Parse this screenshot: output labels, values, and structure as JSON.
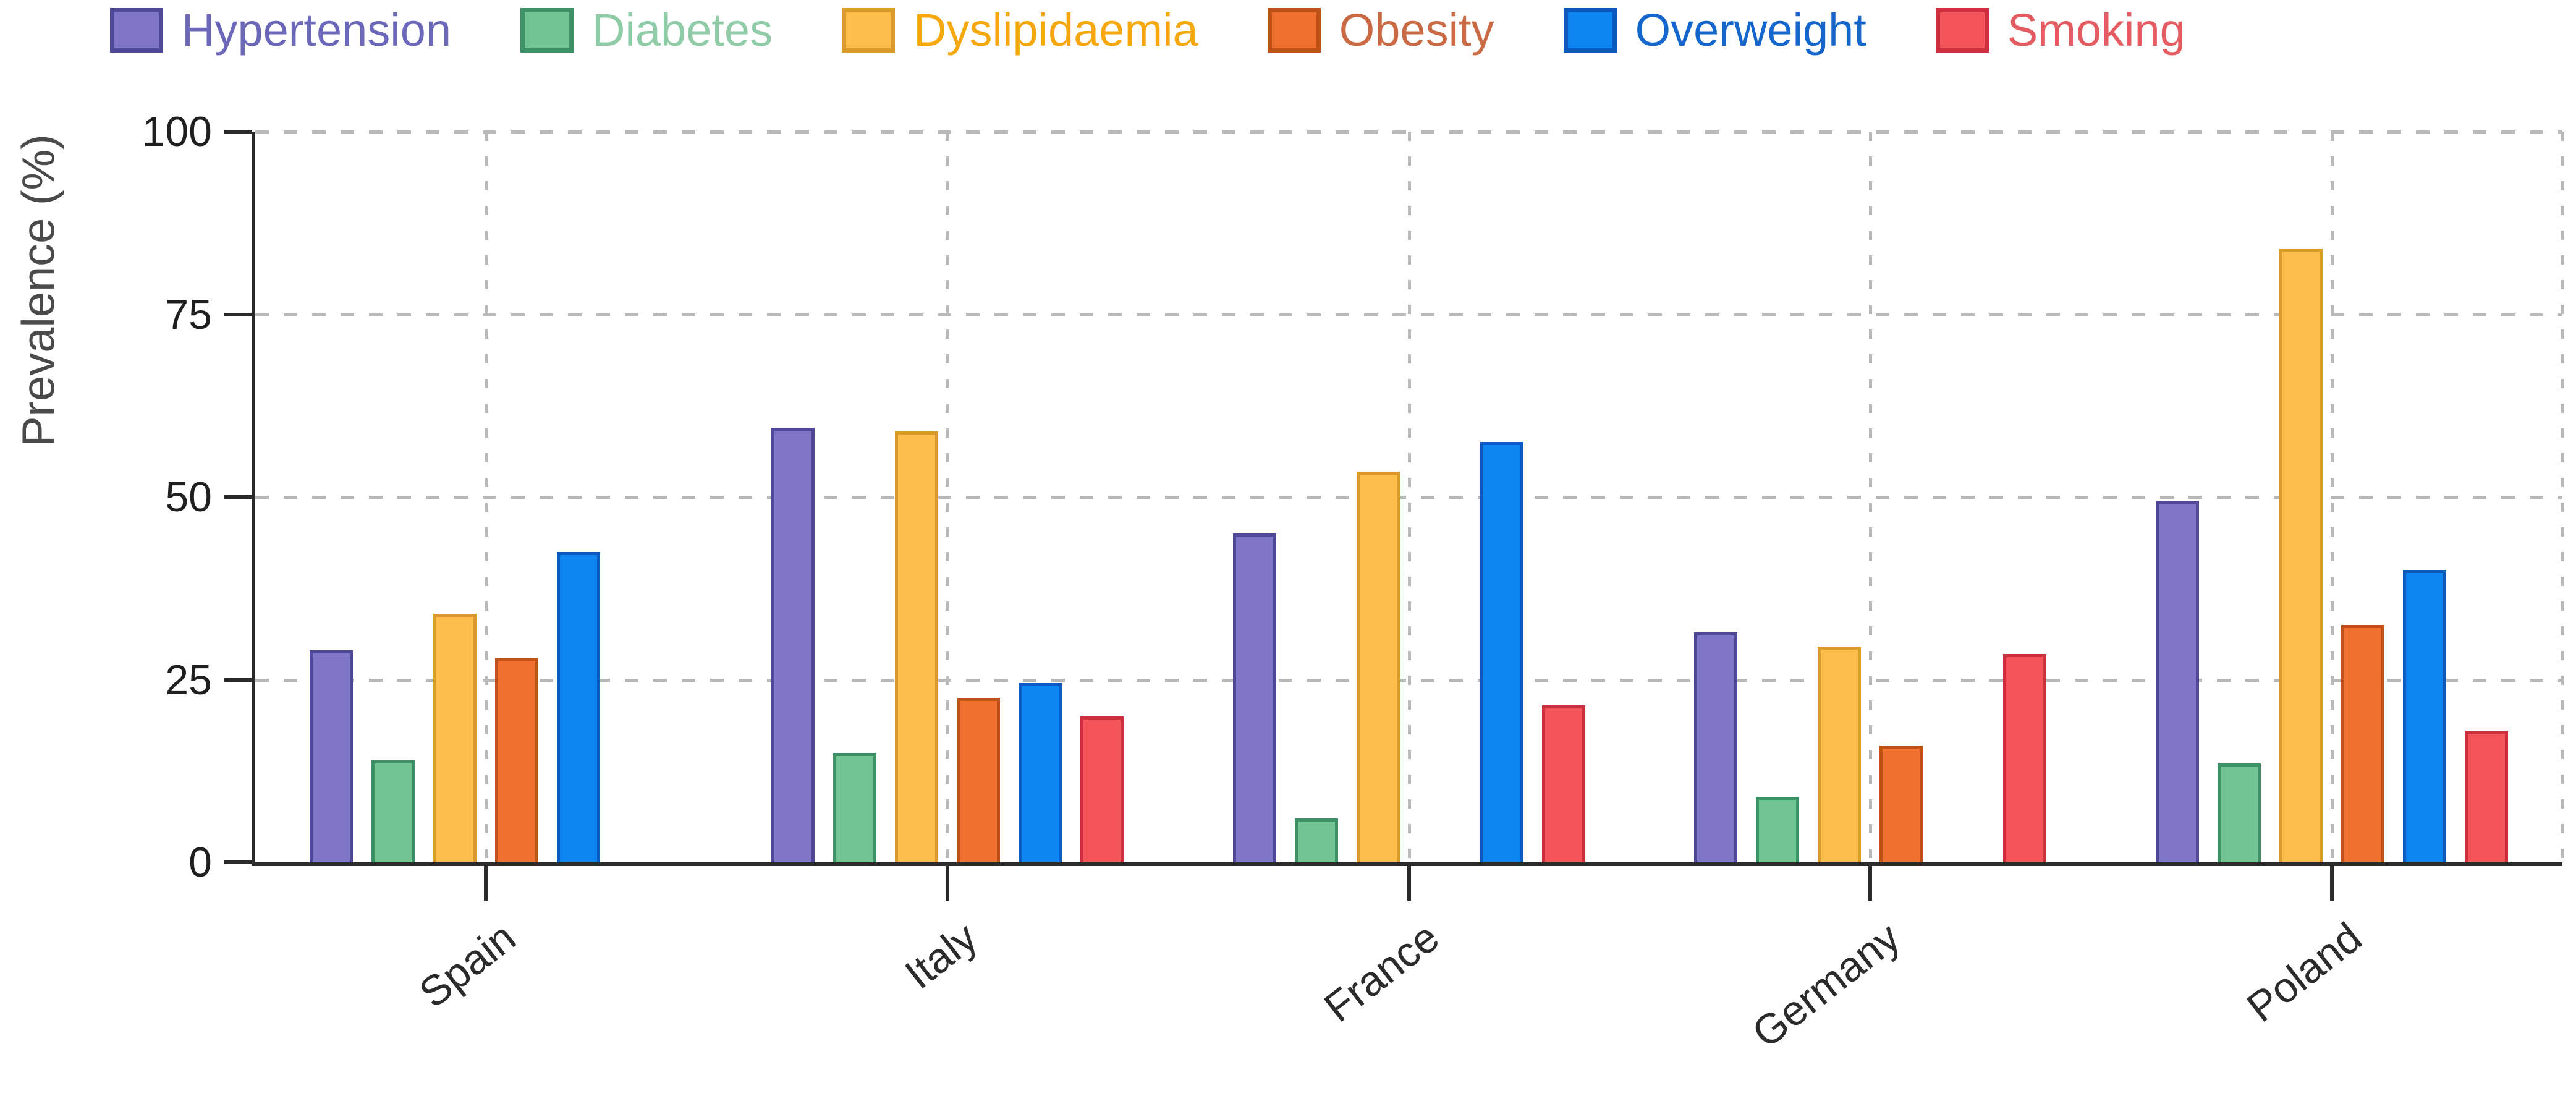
{
  "figure": {
    "background": "#ffffff",
    "axis_color": "#2a2a2a",
    "grid_color": "#b9b9b9",
    "tick_label_color": "#1f1f1f"
  },
  "chart_data": {
    "type": "bar",
    "title": "",
    "xlabel": "",
    "ylabel": "Prevalence (%)",
    "ylim": [
      0,
      100
    ],
    "yticks": [
      0,
      25,
      50,
      75,
      100
    ],
    "grid": "dashed horizontal and vertical at category centers",
    "legend_position": "top",
    "categories": [
      "Spain",
      "Italy",
      "France",
      "Germany",
      "Poland"
    ],
    "series": [
      {
        "name": "Hypertension",
        "fill": "#7F76C8",
        "edge": "#4E4896",
        "label_color": "#6B68BA",
        "values": [
          29,
          59.5,
          45,
          31.5,
          49.5
        ]
      },
      {
        "name": "Diabetes",
        "fill": "#72C493",
        "edge": "#3E9066",
        "label_color": "#8FCBA6",
        "values": [
          14,
          15,
          6,
          9,
          13.5
        ]
      },
      {
        "name": "Dyslipidaemia",
        "fill": "#FBBE4B",
        "edge": "#D99B2B",
        "label_color": "#F6A70B",
        "values": [
          34,
          59,
          53.5,
          29.5,
          84
        ]
      },
      {
        "name": "Obesity",
        "fill": "#F0712F",
        "edge": "#BF5217",
        "label_color": "#C96A45",
        "values": [
          28,
          22.5,
          null,
          16,
          32.5
        ]
      },
      {
        "name": "Overweight",
        "fill": "#0E86F2",
        "edge": "#0A5ABF",
        "label_color": "#1566CC",
        "values": [
          42.5,
          24.5,
          57.5,
          null,
          40
        ]
      },
      {
        "name": "Smoking",
        "fill": "#F4555A",
        "edge": "#CE2F3E",
        "label_color": "#E45B61",
        "values": [
          null,
          20,
          21.5,
          28.5,
          18
        ]
      }
    ]
  }
}
